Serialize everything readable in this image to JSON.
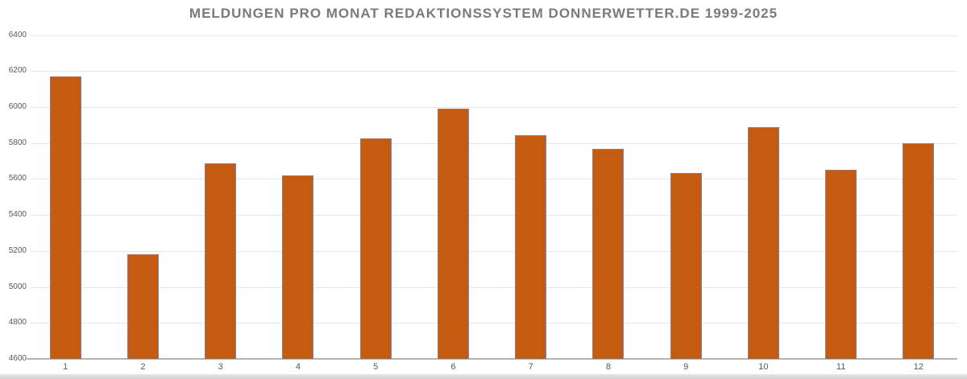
{
  "chart_data": {
    "type": "bar",
    "title": "MELDUNGEN PRO MONAT REDAKTIONSSYSTEM DONNERWETTER.DE 1999-2025",
    "categories": [
      "1",
      "2",
      "3",
      "4",
      "5",
      "6",
      "7",
      "8",
      "9",
      "10",
      "11",
      "12"
    ],
    "values": [
      6170,
      5180,
      5685,
      5620,
      5825,
      5990,
      5845,
      5765,
      5635,
      5890,
      5650,
      5800
    ],
    "ylim": [
      4600,
      6400
    ],
    "ytick_step": 200,
    "yticks": [
      6400,
      6200,
      6000,
      5800,
      5600,
      5400,
      5200,
      5000,
      4800,
      4600
    ],
    "grid": true,
    "legend": "none",
    "colors": {
      "bar_fill": "#C55A11",
      "bar_border": "#878094",
      "gridline": "#E7E7E7",
      "axis_line": "#B5B5B5",
      "title_text": "#7A7A7A",
      "tick_label": "#595959",
      "background": "#FFFFFF",
      "bottom_edge": "#D9D9D9"
    }
  }
}
